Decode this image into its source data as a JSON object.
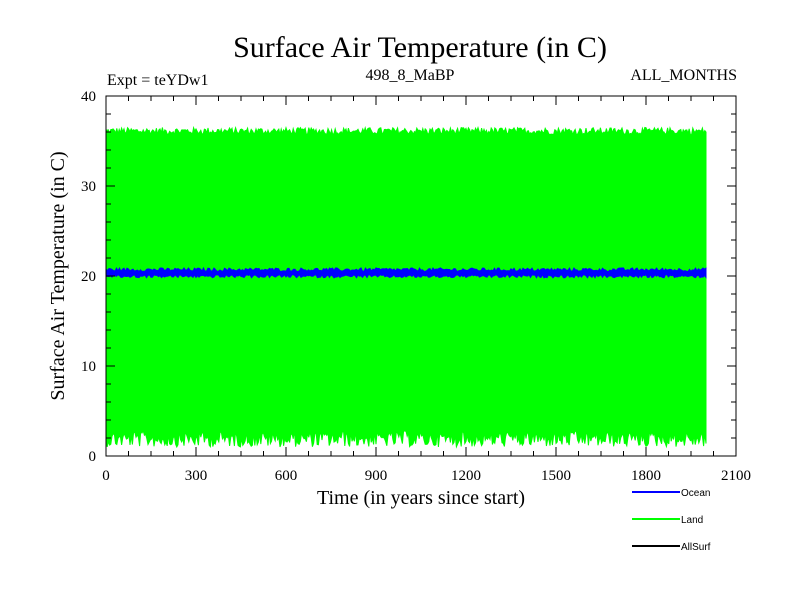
{
  "chart_data": {
    "type": "line",
    "title": "Surface Air Temperature (in C)",
    "subtitle_left": "Expt = teYDw1",
    "subtitle_center": "498_8_MaBP",
    "subtitle_right": "ALL_MONTHS",
    "xlabel": "Time (in years since start)",
    "ylabel": "Surface Air Temperature (in C)",
    "xlim": [
      0,
      2100
    ],
    "ylim": [
      0,
      40
    ],
    "x_ticks": [
      0,
      300,
      600,
      900,
      1200,
      1500,
      1800,
      2100
    ],
    "y_ticks": [
      0,
      10,
      20,
      30,
      40
    ],
    "x_range_data": [
      0,
      2000
    ],
    "series": [
      {
        "name": "Ocean",
        "color": "#0000ff",
        "mean": 20.3,
        "band_low": 19.8,
        "band_high": 20.9
      },
      {
        "name": "Land",
        "color": "#00ff00",
        "seasonal_min": 2.5,
        "seasonal_max": 35.8,
        "min_extreme": 1.0,
        "max_extreme": 36.5
      },
      {
        "name": "AllSurf",
        "color": "#000000"
      }
    ],
    "legend_position": "bottom-right"
  }
}
